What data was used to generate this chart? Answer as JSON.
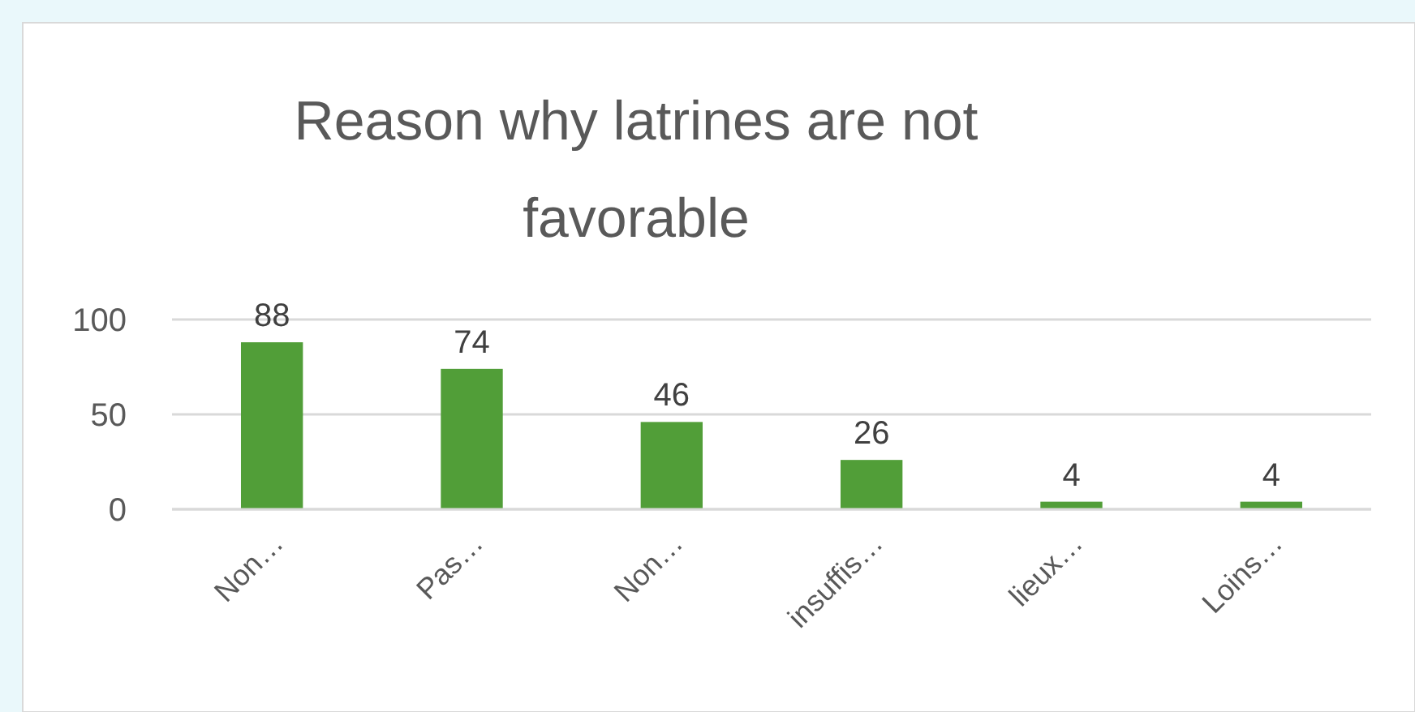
{
  "chart_data": {
    "type": "bar",
    "title": "Reason why latrines are not favorable",
    "categories": [
      "Non…",
      "Pas…",
      "Non…",
      "insuffis…",
      "lieux…",
      "Loins…"
    ],
    "values": [
      88,
      74,
      46,
      26,
      4,
      4
    ],
    "color": "#519e38",
    "ylim": [
      0,
      100
    ],
    "yticks": [
      0,
      50,
      100
    ],
    "grid": "y",
    "data_labels": true
  }
}
